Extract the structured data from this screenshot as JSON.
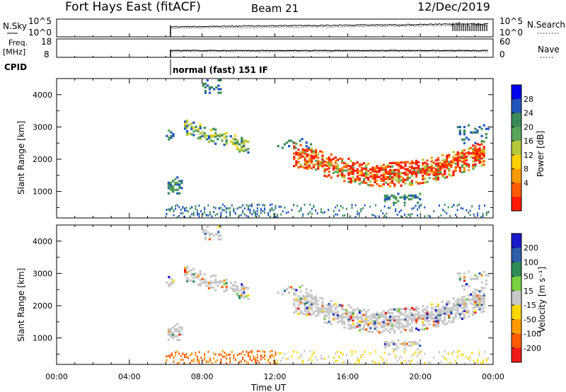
{
  "header": {
    "title": "Fort Hays East (fitACF)",
    "beam": "Beam 21",
    "date": "12/Dec/2019"
  },
  "top_panels": {
    "nsky_label": "N.Sky",
    "nsky_ticks": [
      "10^5",
      "10^0"
    ],
    "nsearch_label": "N.Search",
    "nsearch_ticks": [
      "10^5",
      "10^0"
    ],
    "freq_label_1": "Freq.",
    "freq_label_2": "[MHz]",
    "freq_ticks": [
      "18",
      "8"
    ],
    "nave_label": "Nave",
    "nave_ticks": [
      "60",
      "0"
    ],
    "cpid_label": "CPID",
    "cpid_text": "normal (fast) 151 IF"
  },
  "chart_data": [
    {
      "type": "heatmap",
      "name": "power-panel",
      "ylabel": "Slant Range [km]",
      "xlabel": "Time UT",
      "ylim": [
        180,
        4500
      ],
      "xlim": [
        0,
        24
      ],
      "yticks": [
        "4000",
        "3000",
        "2000",
        "1000"
      ],
      "xticks": [
        "00:00",
        "04:00",
        "08:00",
        "12:00",
        "16:00",
        "20:00",
        "00:00"
      ],
      "colorbar_label": "Power [dB]",
      "colorbar_ticks": [
        "28",
        "24",
        "20",
        "16",
        "12",
        "8",
        "4"
      ],
      "colorbar_range": [
        0,
        30
      ],
      "colors": [
        "#0000ee",
        "#2255bb",
        "#3a8a5a",
        "#5aa55a",
        "#b5c83a",
        "#ffd000",
        "#ff9a00",
        "#ff5a00",
        "#ff1a00"
      ]
    },
    {
      "type": "heatmap",
      "name": "velocity-panel",
      "ylabel": "Slant Range [km]",
      "xlabel": "Time UT",
      "ylim": [
        180,
        4500
      ],
      "xlim": [
        0,
        24
      ],
      "yticks": [
        "4000",
        "3000",
        "2000",
        "1000"
      ],
      "xticks": [
        "00:00",
        "04:00",
        "08:00",
        "12:00",
        "16:00",
        "20:00",
        "00:00"
      ],
      "colorbar_label": "Velocity [m s⁻¹]",
      "colorbar_ticks": [
        "200",
        "100",
        "50",
        "15",
        "-15",
        "-50",
        "-100",
        "-200"
      ],
      "colors": [
        "#1a1acc",
        "#2f5fa8",
        "#2e8b57",
        "#7ad040",
        "#c8c8c8",
        "#ffd700",
        "#ff9a00",
        "#ff5a00",
        "#ee1a1a"
      ]
    }
  ]
}
